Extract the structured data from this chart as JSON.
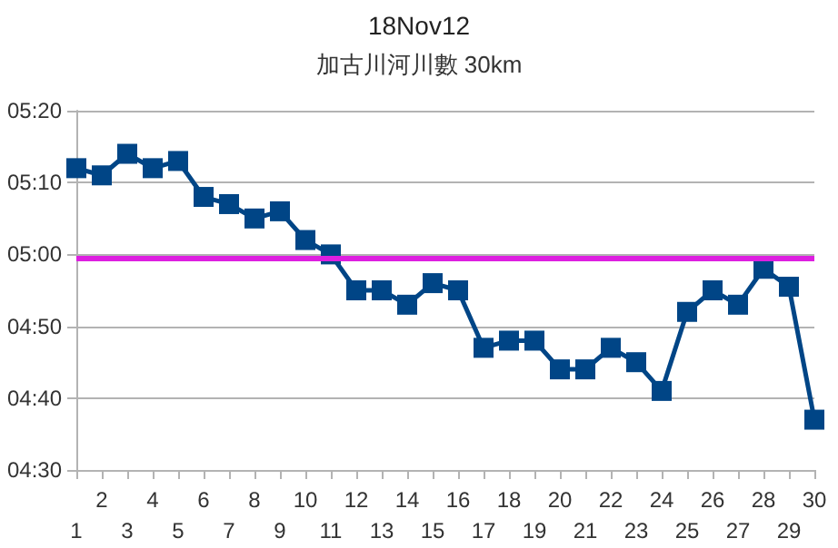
{
  "chart_data": {
    "type": "line",
    "title": "18Nov12",
    "subtitle": "加古川河川數 30km",
    "categories": [
      "1",
      "2",
      "3",
      "4",
      "5",
      "6",
      "7",
      "8",
      "9",
      "10",
      "11",
      "12",
      "13",
      "14",
      "15",
      "16",
      "17",
      "18",
      "19",
      "20",
      "21",
      "22",
      "23",
      "24",
      "25",
      "26",
      "27",
      "28",
      "29",
      "30"
    ],
    "series": [
      {
        "color": "#004586",
        "values": [
          312,
          311,
          314,
          312,
          313,
          308,
          307,
          305,
          306,
          302,
          300,
          295,
          295,
          293,
          296,
          295,
          287,
          288,
          288,
          284,
          284,
          287,
          285,
          281,
          292,
          295,
          293,
          298,
          295.5,
          277
        ]
      }
    ],
    "ylim": [
      270,
      320
    ],
    "yticks": [
      {
        "value": 270,
        "label": "04:30"
      },
      {
        "value": 280,
        "label": "04:40"
      },
      {
        "value": 290,
        "label": "04:50"
      },
      {
        "value": 300,
        "label": "05:00"
      },
      {
        "value": 310,
        "label": "05:10"
      },
      {
        "value": 320,
        "label": "05:20"
      }
    ],
    "ref_lines": [
      {
        "axis": "y",
        "value": 299.5,
        "color": "#dd1fe0"
      }
    ],
    "grid": "y",
    "marker": "square",
    "line_style": "solid"
  }
}
